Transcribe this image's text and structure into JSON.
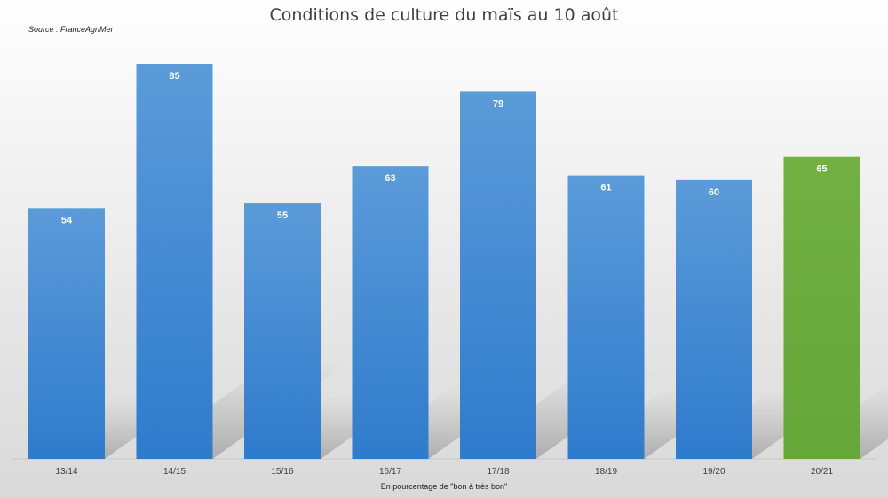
{
  "chart_data": {
    "type": "bar",
    "title": "Conditions de culture du maïs au 10 août",
    "source": "Source : FranceAgriMer",
    "xlabel": "En pourcentage de \"bon à très bon\"",
    "categories": [
      "13/14",
      "14/15",
      "15/16",
      "16/17",
      "17/18",
      "18/19",
      "19/20",
      "20/21"
    ],
    "values": [
      54,
      85,
      55,
      63,
      79,
      61,
      60,
      65
    ],
    "colors": [
      "#3d86d0",
      "#3d86d0",
      "#3d86d0",
      "#3d86d0",
      "#3d86d0",
      "#3d86d0",
      "#3d86d0",
      "#6aab3c"
    ],
    "ylim": [
      0,
      90
    ],
    "grid": false,
    "legend": "none"
  }
}
